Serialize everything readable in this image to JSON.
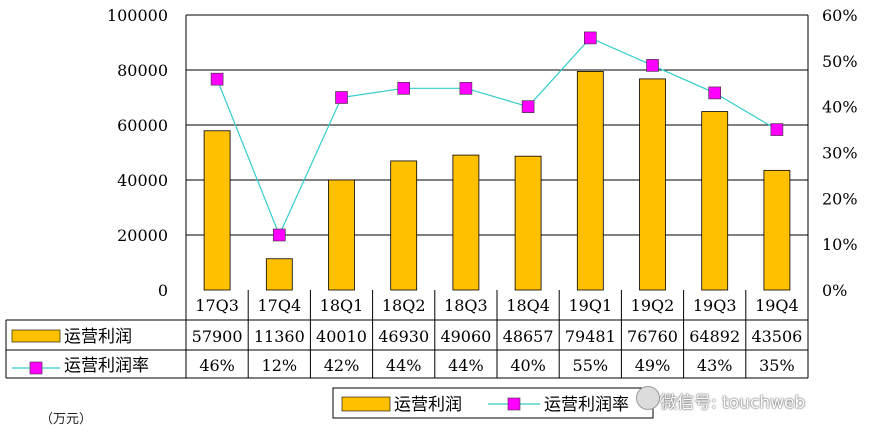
{
  "chart_data": {
    "type": "bar+line",
    "categories": [
      "17Q3",
      "17Q4",
      "18Q1",
      "18Q2",
      "18Q3",
      "18Q4",
      "19Q1",
      "19Q2",
      "19Q3",
      "19Q4"
    ],
    "series": [
      {
        "name": "运营利润",
        "type": "bar",
        "axis": "left",
        "values": [
          57900,
          11360,
          40010,
          46930,
          49060,
          48657,
          79481,
          76760,
          64892,
          43506
        ],
        "color": "#FFC000"
      },
      {
        "name": "运营利润率",
        "type": "line",
        "axis": "right",
        "values": [
          46,
          12,
          42,
          44,
          44,
          40,
          55,
          49,
          43,
          35
        ],
        "labels": [
          "46%",
          "12%",
          "42%",
          "44%",
          "44%",
          "40%",
          "55%",
          "49%",
          "43%",
          "35%"
        ],
        "line_color": "#33CCCC",
        "marker_color": "#FF00FF"
      }
    ],
    "y_left": {
      "ylim": [
        0,
        100000
      ],
      "ticks": [
        "0",
        "20000",
        "40000",
        "60000",
        "80000",
        "100000"
      ]
    },
    "y_right": {
      "ylim": [
        0,
        60
      ],
      "ticks": [
        "0%",
        "10%",
        "20%",
        "30%",
        "40%",
        "50%",
        "60%"
      ]
    },
    "table_rows": [
      {
        "label": "运营利润",
        "cells": [
          "57900",
          "11360",
          "40010",
          "46930",
          "49060",
          "48657",
          "79481",
          "76760",
          "64892",
          "43506"
        ]
      },
      {
        "label": "运营利润率",
        "cells": [
          "46%",
          "12%",
          "42%",
          "44%",
          "44%",
          "40%",
          "55%",
          "49%",
          "43%",
          "35%"
        ]
      }
    ],
    "legend": {
      "position": "bottom-right",
      "items": [
        "运营利润",
        "运营利润率"
      ]
    },
    "unit_label": "（万元）",
    "gridlines": true
  },
  "watermark": "微信号: touchweb"
}
